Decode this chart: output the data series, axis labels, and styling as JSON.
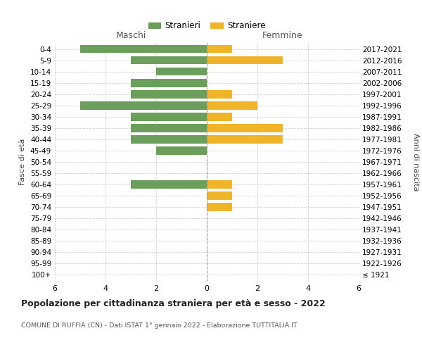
{
  "age_groups": [
    "100+",
    "95-99",
    "90-94",
    "85-89",
    "80-84",
    "75-79",
    "70-74",
    "65-69",
    "60-64",
    "55-59",
    "50-54",
    "45-49",
    "40-44",
    "35-39",
    "30-34",
    "25-29",
    "20-24",
    "15-19",
    "10-14",
    "5-9",
    "0-4"
  ],
  "birth_years": [
    "≤ 1921",
    "1922-1926",
    "1927-1931",
    "1932-1936",
    "1937-1941",
    "1942-1946",
    "1947-1951",
    "1952-1956",
    "1957-1961",
    "1962-1966",
    "1967-1971",
    "1972-1976",
    "1977-1981",
    "1982-1986",
    "1987-1991",
    "1992-1996",
    "1997-2001",
    "2002-2006",
    "2007-2011",
    "2012-2016",
    "2017-2021"
  ],
  "maschi": [
    0,
    0,
    0,
    0,
    0,
    0,
    0,
    0,
    3,
    0,
    0,
    2,
    3,
    3,
    3,
    5,
    3,
    3,
    2,
    3,
    5
  ],
  "femmine": [
    0,
    0,
    0,
    0,
    0,
    0,
    1,
    1,
    1,
    0,
    0,
    0,
    3,
    3,
    1,
    2,
    1,
    0,
    0,
    3,
    1
  ],
  "maschi_color": "#6a9e5a",
  "femmine_color": "#f0b429",
  "title": "Popolazione per cittadinanza straniera per età e sesso - 2022",
  "subtitle": "COMUNE DI RUFFIA (CN) - Dati ISTAT 1° gennaio 2022 - Elaborazione TUTTITALIA.IT",
  "label_maschi": "Maschi",
  "label_femmine": "Femmine",
  "ylabel_left": "Fasce di età",
  "ylabel_right": "Anni di nascita",
  "legend_maschi": "Stranieri",
  "legend_femmine": "Straniere",
  "xlim": 6,
  "background_color": "#ffffff",
  "grid_color": "#d0d0d0"
}
